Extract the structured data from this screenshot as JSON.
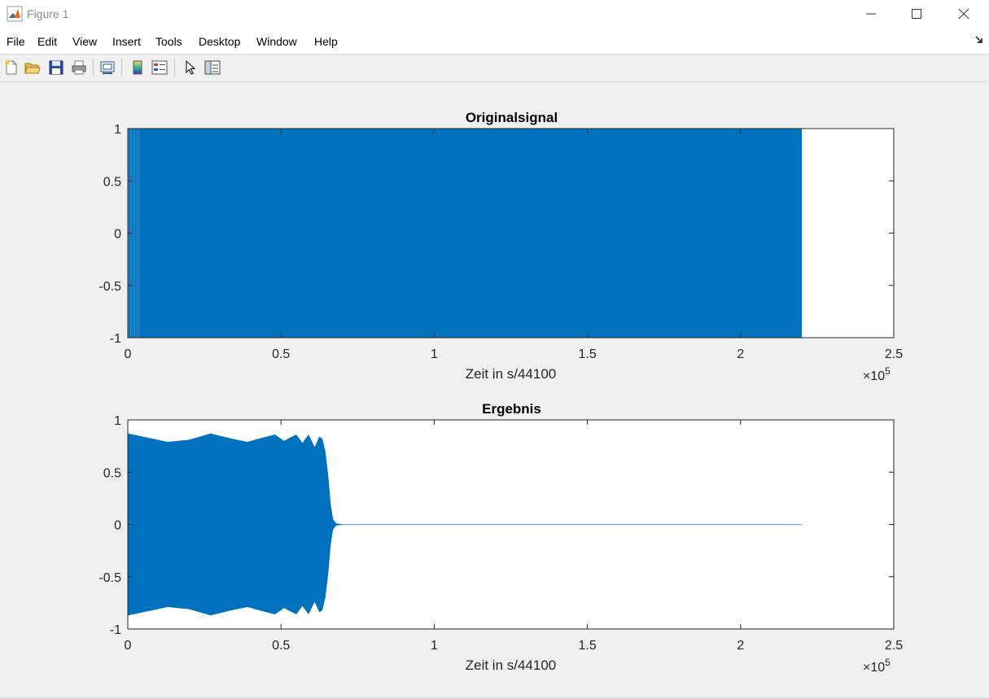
{
  "window": {
    "title": "Figure 1",
    "buttons": [
      {
        "name": "minimize-button",
        "glyph": "─"
      },
      {
        "name": "maximize-button",
        "glyph": "☐"
      },
      {
        "name": "close-button",
        "glyph": "✕"
      }
    ]
  },
  "menu": {
    "items": [
      "File",
      "Edit",
      "View",
      "Insert",
      "Tools",
      "Desktop",
      "Window",
      "Help"
    ],
    "dock_icon": "dock-arrow-icon"
  },
  "toolbar": {
    "buttons": [
      {
        "name": "new-figure-button",
        "icon": "new-file-icon"
      },
      {
        "name": "open-file-button",
        "icon": "folder-open-icon"
      },
      {
        "name": "save-button",
        "icon": "floppy-disk-icon"
      },
      {
        "name": "print-button",
        "icon": "printer-icon"
      },
      {
        "name": "link-plot-button",
        "icon": "link-plot-icon"
      },
      {
        "name": "insert-colorbar-button",
        "icon": "colorbar-icon"
      },
      {
        "name": "insert-legend-button",
        "icon": "legend-icon"
      },
      {
        "name": "edit-plot-button",
        "icon": "pointer-arrow-icon"
      },
      {
        "name": "property-editor-button",
        "icon": "property-panel-icon"
      }
    ]
  },
  "colors": {
    "signal": "#0072bd",
    "axis": "#262626",
    "background": "#f0f0f0",
    "plot_bg": "#ffffff"
  },
  "chart_data": [
    {
      "type": "line",
      "title": "Originalsignal",
      "xlabel": "Zeit in s/44100",
      "ylabel": "",
      "xlim": [
        0,
        250000
      ],
      "ylim": [
        -1,
        1
      ],
      "x_ticks": [
        0,
        50000,
        100000,
        150000,
        200000,
        250000
      ],
      "x_tick_labels": [
        "0",
        "0.5",
        "1",
        "1.5",
        "2",
        "2.5"
      ],
      "x_multiplier": "×10",
      "x_multiplier_exp": "5",
      "y_ticks": [
        1,
        0.5,
        0,
        -0.5,
        -1
      ],
      "y_tick_labels": [
        "1",
        "0.5",
        "0",
        "-0.5",
        "-1"
      ],
      "grid": false,
      "series": [
        {
          "envelope_x": [
            0,
            220000
          ],
          "envelope_upper": [
            1,
            1
          ],
          "envelope_lower": [
            -1,
            -1
          ],
          "end_x": 220000
        }
      ]
    },
    {
      "type": "line",
      "title": "Ergebnis",
      "xlabel": "Zeit in s/44100",
      "ylabel": "",
      "xlim": [
        0,
        250000
      ],
      "ylim": [
        -1,
        1
      ],
      "x_ticks": [
        0,
        50000,
        100000,
        150000,
        200000,
        250000
      ],
      "x_tick_labels": [
        "0",
        "0.5",
        "1",
        "1.5",
        "2",
        "2.5"
      ],
      "x_multiplier": "×10",
      "x_multiplier_exp": "5",
      "y_ticks": [
        1,
        0.5,
        0,
        -0.5,
        -1
      ],
      "y_tick_labels": [
        "1",
        "0.5",
        "0",
        "-0.5",
        "-1"
      ],
      "grid": false,
      "series": [
        {
          "envelope_x": [
            0,
            5000,
            13000,
            20000,
            27000,
            34000,
            39000,
            44000,
            48000,
            51000,
            55000,
            57000,
            59000,
            61000,
            62500,
            63500,
            64500,
            65500,
            66200,
            67000,
            68000,
            70000
          ],
          "envelope_upper": [
            0.87,
            0.84,
            0.79,
            0.81,
            0.87,
            0.82,
            0.79,
            0.83,
            0.86,
            0.8,
            0.86,
            0.78,
            0.86,
            0.74,
            0.84,
            0.82,
            0.7,
            0.45,
            0.2,
            0.05,
            0.01,
            0.003
          ],
          "end_x": 220000,
          "tail_amplitude": 0.003
        }
      ]
    }
  ]
}
